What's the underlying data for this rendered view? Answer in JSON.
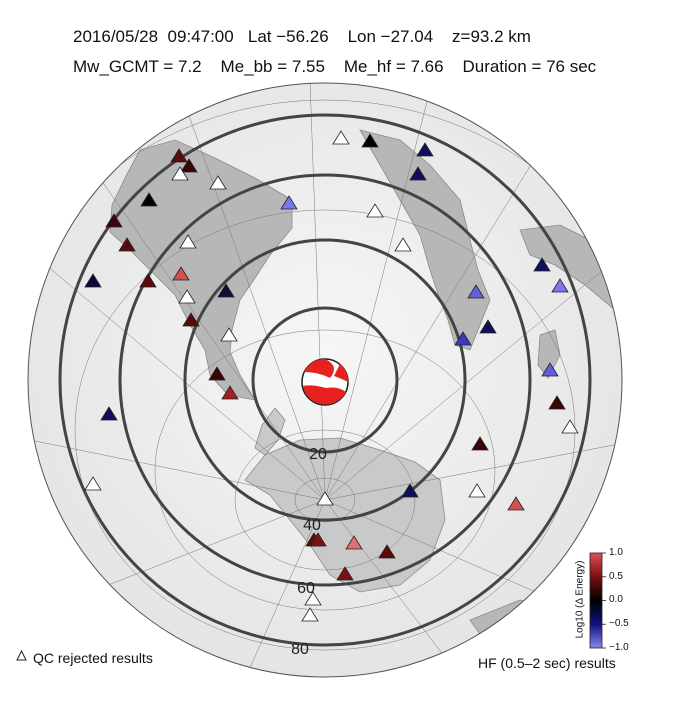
{
  "header": {
    "line1": "2016/05/28  09:47:00   Lat −56.26    Lon −27.04    z=93.2 km",
    "line2": "Mw_GCMT = 7.2    Me_bb = 7.55    Me_hf = 7.66    Duration = 76 sec"
  },
  "map": {
    "ring_labels": [
      "20",
      "40",
      "60",
      "80"
    ],
    "epicenter": {
      "lat": -56.26,
      "lon": -27.04
    },
    "colors": {
      "ocean": "#efefef",
      "land": "#b9b9b9",
      "ring": "#444444",
      "beachball": "#e8201e"
    }
  },
  "legend": {
    "qc_label": "QC rejected results",
    "hf_label": "HF (0.5–2 sec) results"
  },
  "colorbar": {
    "title": "Log10 (Δ Energy)",
    "ticks": [
      "1.0",
      "0.5",
      "0.0",
      "−0.5",
      "−1.0"
    ],
    "colors": [
      "#d23b3b",
      "#5a0a0a",
      "#000000",
      "#0a0a5a",
      "#7777ee"
    ]
  }
}
